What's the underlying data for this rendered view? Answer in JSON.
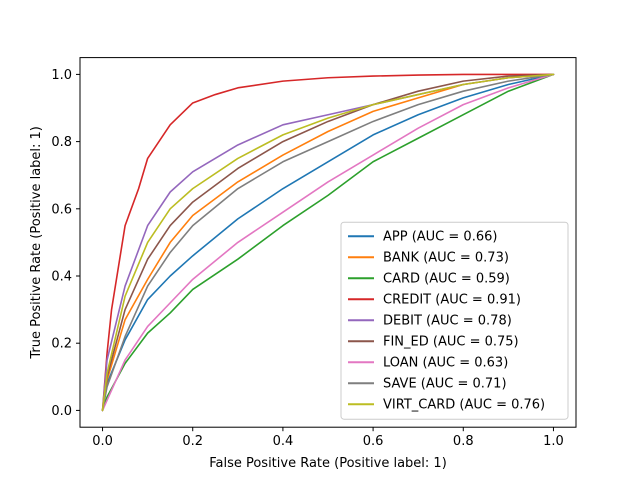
{
  "chart_data": {
    "type": "line",
    "title": "",
    "xlabel": "False Positive Rate (Positive label: 1)",
    "ylabel": "True Positive Rate (Positive label: 1)",
    "xlim": [
      -0.05,
      1.05
    ],
    "ylim": [
      -0.05,
      1.05
    ],
    "xticks": [
      "0.0",
      "0.2",
      "0.4",
      "0.6",
      "0.8",
      "1.0"
    ],
    "yticks": [
      "0.0",
      "0.2",
      "0.4",
      "0.6",
      "0.8",
      "1.0"
    ],
    "grid": false,
    "legend_position": "lower-right",
    "series": [
      {
        "name": "APP (AUC = 0.66)",
        "color": "#1f77b4",
        "x": [
          0,
          0.01,
          0.05,
          0.1,
          0.15,
          0.2,
          0.3,
          0.4,
          0.5,
          0.6,
          0.7,
          0.8,
          0.9,
          1.0
        ],
        "y": [
          0,
          0.08,
          0.21,
          0.33,
          0.4,
          0.46,
          0.57,
          0.66,
          0.74,
          0.82,
          0.88,
          0.93,
          0.97,
          1.0
        ]
      },
      {
        "name": "BANK (AUC = 0.73)",
        "color": "#ff7f0e",
        "x": [
          0,
          0.01,
          0.05,
          0.1,
          0.15,
          0.2,
          0.3,
          0.4,
          0.5,
          0.6,
          0.7,
          0.8,
          0.9,
          1.0
        ],
        "y": [
          0,
          0.09,
          0.27,
          0.39,
          0.5,
          0.58,
          0.68,
          0.76,
          0.83,
          0.89,
          0.93,
          0.97,
          0.99,
          1.0
        ]
      },
      {
        "name": "CARD (AUC = 0.59)",
        "color": "#2ca02c",
        "x": [
          0,
          0.01,
          0.05,
          0.1,
          0.15,
          0.2,
          0.3,
          0.4,
          0.5,
          0.6,
          0.7,
          0.8,
          0.9,
          1.0
        ],
        "y": [
          0,
          0.04,
          0.14,
          0.23,
          0.29,
          0.36,
          0.45,
          0.55,
          0.64,
          0.74,
          0.81,
          0.88,
          0.95,
          1.0
        ]
      },
      {
        "name": "CREDIT (AUC = 0.91)",
        "color": "#d62728",
        "x": [
          0,
          0.01,
          0.02,
          0.05,
          0.08,
          0.1,
          0.15,
          0.2,
          0.25,
          0.3,
          0.4,
          0.5,
          0.6,
          0.7,
          0.8,
          0.9,
          1.0
        ],
        "y": [
          0,
          0.17,
          0.3,
          0.55,
          0.66,
          0.75,
          0.85,
          0.915,
          0.94,
          0.96,
          0.98,
          0.99,
          0.995,
          0.998,
          1.0,
          1.0,
          1.0
        ]
      },
      {
        "name": "DEBIT (AUC = 0.78)",
        "color": "#9467bd",
        "x": [
          0,
          0.01,
          0.05,
          0.1,
          0.15,
          0.2,
          0.3,
          0.4,
          0.5,
          0.6,
          0.7,
          0.8,
          0.9,
          1.0
        ],
        "y": [
          0,
          0.15,
          0.37,
          0.55,
          0.65,
          0.71,
          0.79,
          0.85,
          0.88,
          0.91,
          0.94,
          0.97,
          0.99,
          1.0
        ]
      },
      {
        "name": "FIN_ED (AUC = 0.75)",
        "color": "#8c564b",
        "x": [
          0,
          0.01,
          0.05,
          0.1,
          0.15,
          0.2,
          0.3,
          0.4,
          0.5,
          0.6,
          0.7,
          0.8,
          0.9,
          1.0
        ],
        "y": [
          0,
          0.1,
          0.3,
          0.45,
          0.55,
          0.62,
          0.72,
          0.8,
          0.86,
          0.91,
          0.95,
          0.98,
          0.995,
          1.0
        ]
      },
      {
        "name": "LOAN (AUC = 0.63)",
        "color": "#e377c2",
        "x": [
          0,
          0.01,
          0.05,
          0.1,
          0.15,
          0.2,
          0.3,
          0.4,
          0.5,
          0.6,
          0.7,
          0.8,
          0.9,
          1.0
        ],
        "y": [
          0,
          0.03,
          0.15,
          0.25,
          0.32,
          0.39,
          0.5,
          0.59,
          0.68,
          0.76,
          0.84,
          0.91,
          0.96,
          1.0
        ]
      },
      {
        "name": "SAVE (AUC = 0.71)",
        "color": "#7f7f7f",
        "x": [
          0,
          0.01,
          0.05,
          0.1,
          0.15,
          0.2,
          0.3,
          0.4,
          0.5,
          0.6,
          0.7,
          0.8,
          0.9,
          1.0
        ],
        "y": [
          0,
          0.07,
          0.22,
          0.37,
          0.47,
          0.55,
          0.66,
          0.74,
          0.8,
          0.86,
          0.91,
          0.95,
          0.98,
          1.0
        ]
      },
      {
        "name": "VIRT_CARD (AUC = 0.76)",
        "color": "#bcbd22",
        "x": [
          0,
          0.01,
          0.05,
          0.1,
          0.15,
          0.2,
          0.3,
          0.4,
          0.5,
          0.6,
          0.7,
          0.8,
          0.9,
          1.0
        ],
        "y": [
          0,
          0.11,
          0.34,
          0.5,
          0.6,
          0.66,
          0.75,
          0.82,
          0.87,
          0.91,
          0.94,
          0.97,
          0.99,
          1.0
        ]
      }
    ]
  }
}
